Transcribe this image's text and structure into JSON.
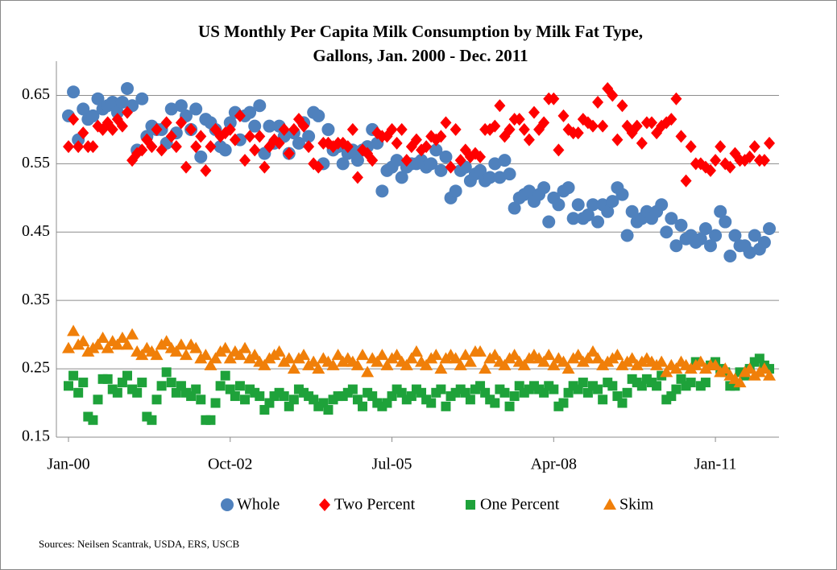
{
  "chart_data": {
    "type": "scatter",
    "title": [
      "US Monthly Per Capita Milk Consumption by Milk Fat Type,",
      "Gallons, Jan. 2000 - Dec. 2011"
    ],
    "source": "Sources: Neilsen Scantrak, USDA, ERS, USCB",
    "categories": [
      "Jan-00",
      null,
      null,
      null,
      null,
      null,
      null,
      null,
      null,
      null,
      null,
      null,
      null,
      null,
      null,
      null,
      null,
      null,
      null,
      null,
      null,
      null,
      null,
      null,
      null,
      null,
      null,
      null,
      null,
      null,
      null,
      null,
      null,
      "Oct-02",
      null,
      null,
      null,
      null,
      null,
      null,
      null,
      null,
      null,
      null,
      null,
      null,
      null,
      null,
      null,
      null,
      null,
      null,
      null,
      null,
      null,
      null,
      null,
      null,
      null,
      null,
      null,
      null,
      null,
      null,
      null,
      null,
      "Jul-05",
      null,
      null,
      null,
      null,
      null,
      null,
      null,
      null,
      null,
      null,
      null,
      null,
      null,
      null,
      null,
      null,
      null,
      null,
      null,
      null,
      null,
      null,
      null,
      null,
      null,
      null,
      null,
      null,
      null,
      null,
      null,
      null,
      "Apr-08",
      null,
      null,
      null,
      null,
      null,
      null,
      null,
      null,
      null,
      null,
      null,
      null,
      null,
      null,
      null,
      null,
      null,
      null,
      null,
      null,
      null,
      null,
      null,
      null,
      null,
      null,
      null,
      null,
      null,
      null,
      null,
      null,
      "Jan-11",
      null,
      null,
      null,
      null,
      null,
      null,
      null,
      null,
      null,
      null,
      null
    ],
    "ylim": [
      0.15,
      0.7
    ],
    "yticks": [
      0.15,
      0.25,
      0.35,
      0.45,
      0.55,
      0.65
    ],
    "grid": true,
    "series": [
      {
        "name": "Whole",
        "color": "#4f81bd",
        "marker": "circle",
        "values": [
          0.62,
          0.655,
          0.585,
          0.63,
          0.615,
          0.62,
          0.645,
          0.63,
          0.635,
          0.64,
          0.625,
          0.64,
          0.66,
          0.635,
          0.57,
          0.645,
          0.59,
          0.605,
          0.6,
          0.6,
          0.58,
          0.63,
          0.595,
          0.635,
          0.62,
          0.6,
          0.63,
          0.56,
          0.615,
          0.61,
          0.6,
          0.575,
          0.57,
          0.61,
          0.625,
          0.585,
          0.62,
          0.625,
          0.605,
          0.635,
          0.565,
          0.605,
          0.58,
          0.605,
          0.59,
          0.565,
          0.595,
          0.58,
          0.61,
          0.59,
          0.625,
          0.62,
          0.55,
          0.6,
          0.57,
          0.575,
          0.55,
          0.565,
          0.57,
          0.555,
          0.57,
          0.575,
          0.6,
          0.58,
          0.51,
          0.54,
          0.545,
          0.555,
          0.53,
          0.545,
          0.55,
          0.55,
          0.555,
          0.545,
          0.55,
          0.57,
          0.54,
          0.56,
          0.5,
          0.51,
          0.54,
          0.545,
          0.525,
          0.535,
          0.54,
          0.525,
          0.53,
          0.55,
          0.53,
          0.555,
          0.535,
          0.485,
          0.5,
          0.505,
          0.51,
          0.495,
          0.505,
          0.515,
          0.465,
          0.5,
          0.49,
          0.51,
          0.515,
          0.47,
          0.49,
          0.47,
          0.475,
          0.49,
          0.465,
          0.49,
          0.48,
          0.495,
          0.515,
          0.505,
          0.445,
          0.48,
          0.465,
          0.47,
          0.48,
          0.47,
          0.48,
          0.49,
          0.45,
          0.47,
          0.43,
          0.46,
          0.44,
          0.445,
          0.435,
          0.44,
          0.455,
          0.43,
          0.445,
          0.48,
          0.465,
          0.415,
          0.445,
          0.43,
          0.43,
          0.42,
          0.445,
          0.425,
          0.435,
          0.455
        ]
      },
      {
        "name": "Two Percent",
        "color": "#ff0000",
        "marker": "diamond",
        "values": [
          0.575,
          0.615,
          0.575,
          0.595,
          0.575,
          0.575,
          0.605,
          0.6,
          0.61,
          0.6,
          0.615,
          0.605,
          0.625,
          0.555,
          0.565,
          0.57,
          0.585,
          0.575,
          0.6,
          0.57,
          0.61,
          0.59,
          0.575,
          0.61,
          0.545,
          0.6,
          0.575,
          0.59,
          0.54,
          0.575,
          0.6,
          0.59,
          0.595,
          0.6,
          0.585,
          0.62,
          0.555,
          0.59,
          0.57,
          0.59,
          0.545,
          0.575,
          0.585,
          0.58,
          0.6,
          0.565,
          0.6,
          0.615,
          0.605,
          0.575,
          0.55,
          0.545,
          0.58,
          0.58,
          0.575,
          0.58,
          0.58,
          0.575,
          0.6,
          0.53,
          0.57,
          0.565,
          0.555,
          0.595,
          0.59,
          0.59,
          0.6,
          0.58,
          0.6,
          0.555,
          0.575,
          0.585,
          0.57,
          0.575,
          0.59,
          0.585,
          0.59,
          0.61,
          0.545,
          0.6,
          0.555,
          0.57,
          0.56,
          0.565,
          0.56,
          0.6,
          0.6,
          0.605,
          0.635,
          0.59,
          0.6,
          0.615,
          0.615,
          0.6,
          0.585,
          0.625,
          0.6,
          0.61,
          0.645,
          0.645,
          0.57,
          0.62,
          0.6,
          0.595,
          0.595,
          0.615,
          0.61,
          0.605,
          0.64,
          0.605,
          0.66,
          0.65,
          0.585,
          0.635,
          0.605,
          0.595,
          0.605,
          0.58,
          0.61,
          0.61,
          0.595,
          0.605,
          0.61,
          0.615,
          0.645,
          0.59,
          0.525,
          0.575,
          0.55,
          0.55,
          0.545,
          0.54,
          0.555,
          0.575,
          0.55,
          0.545,
          0.565,
          0.555,
          0.555,
          0.56,
          0.575,
          0.555,
          0.555,
          0.58
        ]
      },
      {
        "name": "One Percent",
        "color": "#1ea23a",
        "marker": "square",
        "values": [
          0.225,
          0.24,
          0.215,
          0.23,
          0.18,
          0.175,
          0.205,
          0.235,
          0.235,
          0.22,
          0.215,
          0.23,
          0.24,
          0.22,
          0.215,
          0.23,
          0.18,
          0.175,
          0.205,
          0.225,
          0.245,
          0.23,
          0.215,
          0.225,
          0.215,
          0.21,
          0.22,
          0.205,
          0.175,
          0.175,
          0.2,
          0.225,
          0.24,
          0.22,
          0.21,
          0.225,
          0.205,
          0.22,
          0.215,
          0.21,
          0.19,
          0.2,
          0.21,
          0.215,
          0.21,
          0.195,
          0.205,
          0.22,
          0.215,
          0.21,
          0.205,
          0.195,
          0.2,
          0.19,
          0.205,
          0.21,
          0.21,
          0.215,
          0.22,
          0.205,
          0.195,
          0.215,
          0.21,
          0.2,
          0.195,
          0.2,
          0.21,
          0.22,
          0.215,
          0.205,
          0.21,
          0.22,
          0.215,
          0.205,
          0.2,
          0.215,
          0.22,
          0.195,
          0.21,
          0.215,
          0.22,
          0.215,
          0.205,
          0.22,
          0.225,
          0.215,
          0.205,
          0.2,
          0.22,
          0.215,
          0.195,
          0.21,
          0.225,
          0.215,
          0.22,
          0.225,
          0.22,
          0.215,
          0.225,
          0.22,
          0.195,
          0.2,
          0.215,
          0.225,
          0.22,
          0.23,
          0.215,
          0.225,
          0.22,
          0.205,
          0.23,
          0.225,
          0.21,
          0.2,
          0.215,
          0.235,
          0.23,
          0.225,
          0.235,
          0.23,
          0.225,
          0.24,
          0.205,
          0.21,
          0.22,
          0.235,
          0.225,
          0.23,
          0.26,
          0.225,
          0.23,
          0.255,
          0.26,
          0.25,
          0.245,
          0.225,
          0.225,
          0.245,
          0.24,
          0.25,
          0.26,
          0.265,
          0.255,
          0.25
        ]
      },
      {
        "name": "Skim",
        "color": "#f07f09",
        "marker": "triangle",
        "values": [
          0.28,
          0.305,
          0.285,
          0.29,
          0.275,
          0.28,
          0.285,
          0.295,
          0.28,
          0.29,
          0.285,
          0.295,
          0.285,
          0.3,
          0.275,
          0.27,
          0.28,
          0.275,
          0.27,
          0.285,
          0.29,
          0.28,
          0.275,
          0.285,
          0.27,
          0.285,
          0.28,
          0.265,
          0.27,
          0.255,
          0.265,
          0.275,
          0.28,
          0.265,
          0.275,
          0.27,
          0.28,
          0.265,
          0.27,
          0.26,
          0.255,
          0.265,
          0.27,
          0.275,
          0.26,
          0.265,
          0.25,
          0.265,
          0.27,
          0.255,
          0.26,
          0.25,
          0.265,
          0.26,
          0.255,
          0.27,
          0.26,
          0.265,
          0.26,
          0.255,
          0.27,
          0.245,
          0.265,
          0.26,
          0.27,
          0.255,
          0.265,
          0.27,
          0.26,
          0.255,
          0.265,
          0.275,
          0.26,
          0.255,
          0.265,
          0.27,
          0.25,
          0.265,
          0.27,
          0.265,
          0.255,
          0.27,
          0.26,
          0.275,
          0.275,
          0.25,
          0.265,
          0.27,
          0.26,
          0.255,
          0.265,
          0.27,
          0.26,
          0.255,
          0.265,
          0.27,
          0.265,
          0.26,
          0.27,
          0.255,
          0.265,
          0.26,
          0.25,
          0.265,
          0.27,
          0.26,
          0.265,
          0.275,
          0.265,
          0.255,
          0.26,
          0.265,
          0.27,
          0.255,
          0.26,
          0.265,
          0.255,
          0.26,
          0.265,
          0.26,
          0.255,
          0.26,
          0.245,
          0.255,
          0.25,
          0.26,
          0.255,
          0.25,
          0.255,
          0.26,
          0.25,
          0.255,
          0.255,
          0.245,
          0.25,
          0.24,
          0.235,
          0.23,
          0.245,
          0.25,
          0.24,
          0.245,
          0.25,
          0.24
        ]
      }
    ]
  }
}
